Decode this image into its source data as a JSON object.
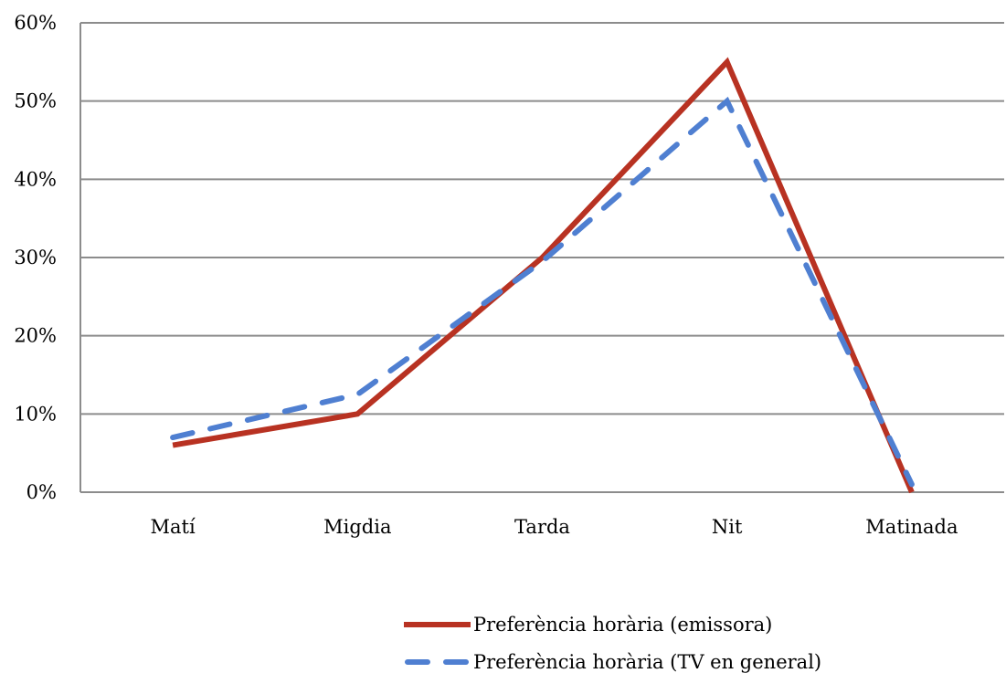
{
  "chart_data": {
    "type": "line",
    "categories": [
      "Matí",
      "Migdia",
      "Tarda",
      "Nit",
      "Matinada"
    ],
    "series": [
      {
        "name": "Preferència horària (emissora)",
        "values": [
          6,
          10,
          30,
          55,
          0
        ],
        "color": "#b83222",
        "style": "solid"
      },
      {
        "name": "Preferència horària (TV en general)",
        "values": [
          7,
          12.5,
          29.5,
          50,
          1
        ],
        "color": "#4f7fd1",
        "style": "dashed"
      }
    ],
    "y_ticks": [
      "0%",
      "10%",
      "20%",
      "30%",
      "40%",
      "50%",
      "60%"
    ],
    "ylim": [
      0,
      60
    ],
    "grid": true,
    "legend_position": "bottom"
  }
}
